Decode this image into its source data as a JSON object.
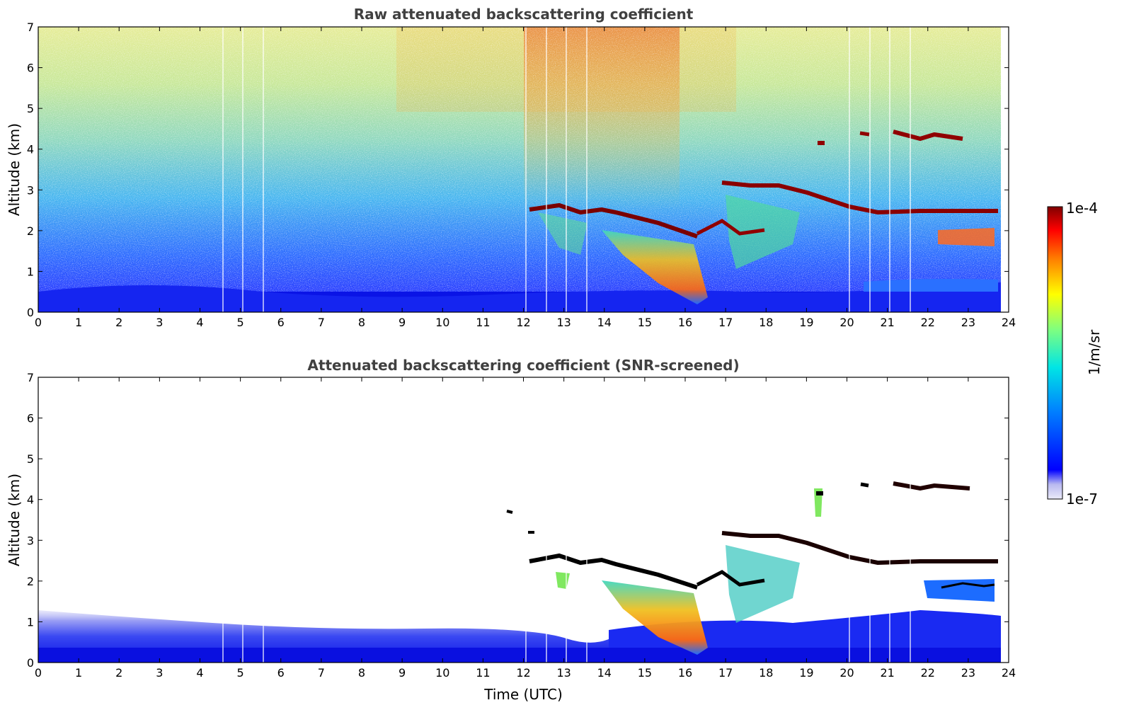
{
  "chart_data": [
    {
      "type": "heatmap",
      "title": "Raw attenuated backscattering coefficient",
      "xlabel": "",
      "ylabel": "Altitude (km)",
      "xlim": [
        0,
        24
      ],
      "ylim": [
        0,
        7
      ],
      "xticks": [
        "0",
        "1",
        "2",
        "3",
        "4",
        "5",
        "6",
        "7",
        "8",
        "9",
        "10",
        "11",
        "12",
        "13",
        "14",
        "15",
        "16",
        "17",
        "18",
        "19",
        "20",
        "21",
        "22",
        "23",
        "24"
      ],
      "yticks": [
        "0",
        "1",
        "2",
        "3",
        "4",
        "5",
        "6",
        "7"
      ],
      "grid": false,
      "colorscale": "jet",
      "features": [
        {
          "name": "cloud-layer",
          "time": [
            12.1,
            16.3
          ],
          "altitude": [
            2.5,
            1.8
          ]
        },
        {
          "name": "cloud-layer",
          "time": [
            16.9,
            19.4
          ],
          "altitude": [
            3.1,
            2.7
          ]
        },
        {
          "name": "cloud-layer",
          "time": [
            19.5,
            23.9
          ],
          "altitude": [
            2.5,
            2.4
          ]
        },
        {
          "name": "cloud-layer",
          "time": [
            21.0,
            22.9
          ],
          "altitude": [
            4.4,
            4.3
          ]
        },
        {
          "name": "precipitation",
          "time": [
            14.8,
            16.5
          ],
          "altitude": [
            0.2,
            2.0
          ]
        },
        {
          "name": "boundary-layer",
          "time": [
            0,
            24
          ],
          "altitude": [
            0,
            0.7
          ]
        }
      ]
    },
    {
      "type": "heatmap",
      "title": "Attenuated backscattering coefficient (SNR-screened)",
      "xlabel": "Time (UTC)",
      "ylabel": "Altitude (km)",
      "xlim": [
        0,
        24
      ],
      "ylim": [
        0,
        7
      ],
      "xticks": [
        "0",
        "1",
        "2",
        "3",
        "4",
        "5",
        "6",
        "7",
        "8",
        "9",
        "10",
        "11",
        "12",
        "13",
        "14",
        "15",
        "16",
        "17",
        "18",
        "19",
        "20",
        "21",
        "22",
        "23",
        "24"
      ],
      "yticks": [
        "0",
        "1",
        "2",
        "3",
        "4",
        "5",
        "6",
        "7"
      ],
      "grid": false,
      "colorscale": "jet"
    }
  ],
  "colorbar": {
    "max_label": "1e-4",
    "min_label": "1e-7",
    "unit_label": "1/m/sr",
    "range": [
      1e-07,
      0.0001
    ],
    "scale": "log",
    "colors": [
      "#eaeaf8",
      "#b9b9f0",
      "#0000ff",
      "#0080ff",
      "#00e5e5",
      "#7fff7f",
      "#ffff00",
      "#ff8000",
      "#ff0000",
      "#800000"
    ]
  }
}
